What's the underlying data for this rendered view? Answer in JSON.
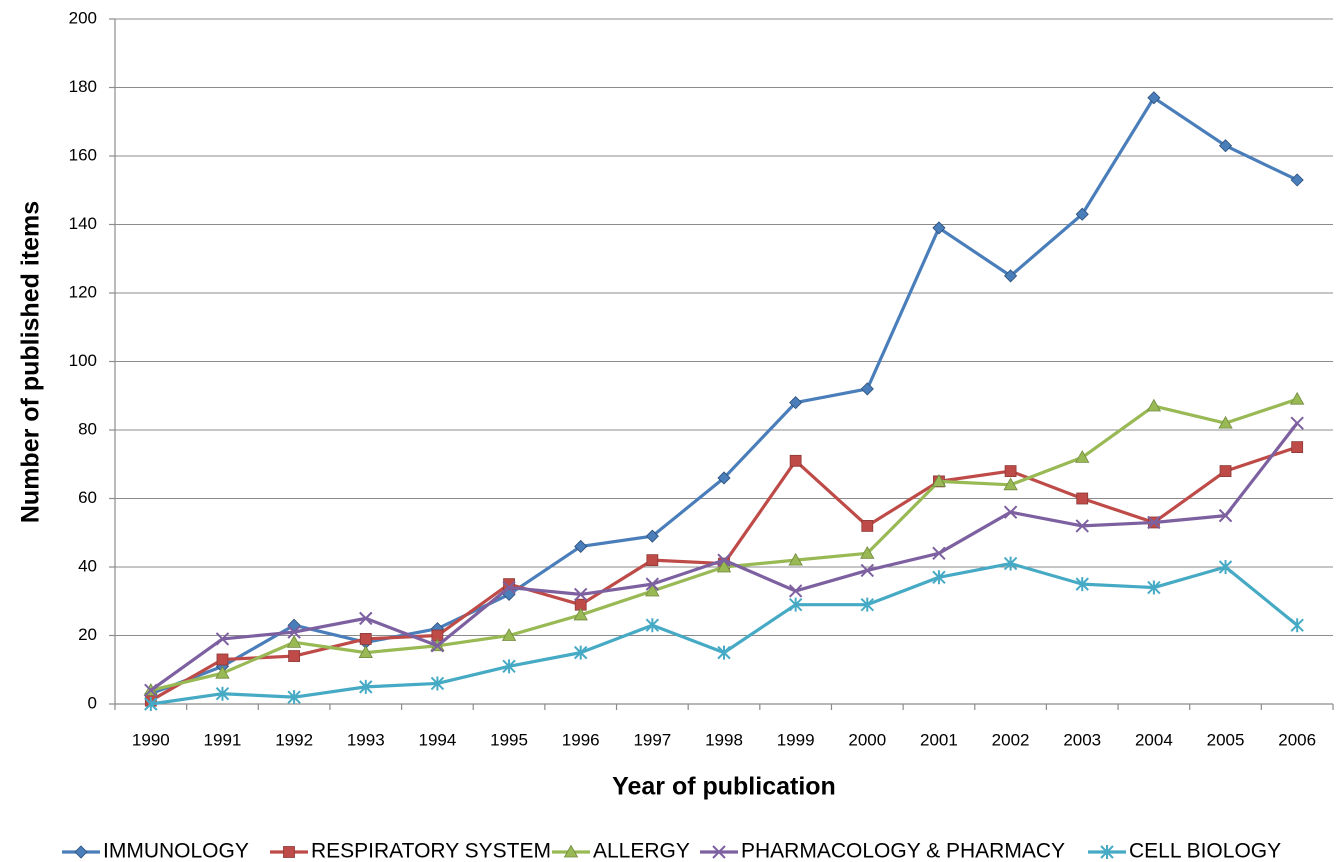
{
  "chart_data": {
    "type": "line",
    "x_label": "Year of publication",
    "y_label": "Number of published items",
    "categories": [
      "1990",
      "1991",
      "1992",
      "1993",
      "1994",
      "1995",
      "1996",
      "1997",
      "1998",
      "1999",
      "2000",
      "2001",
      "2002",
      "2003",
      "2004",
      "2005",
      "2006"
    ],
    "ylim": [
      0,
      200
    ],
    "yticks": [
      0,
      20,
      40,
      60,
      80,
      100,
      120,
      140,
      160,
      180,
      200
    ],
    "grid": true,
    "legend": "bottom",
    "series": [
      {
        "name": "IMMUNOLOGY",
        "color": "#4a7ebb",
        "marker": "diamond",
        "values": [
          3,
          11,
          23,
          18,
          22,
          32,
          46,
          49,
          66,
          88,
          92,
          139,
          125,
          143,
          177,
          163,
          153
        ]
      },
      {
        "name": "RESPIRATORY SYSTEM",
        "color": "#be4b48",
        "marker": "square",
        "values": [
          1,
          13,
          14,
          19,
          20,
          35,
          29,
          42,
          41,
          71,
          52,
          65,
          68,
          60,
          53,
          68,
          75
        ]
      },
      {
        "name": "ALLERGY",
        "color": "#98b954",
        "marker": "triangle",
        "values": [
          4,
          9,
          18,
          15,
          17,
          20,
          26,
          33,
          40,
          42,
          44,
          65,
          64,
          72,
          87,
          82,
          89
        ]
      },
      {
        "name": "PHARMACOLOGY & PHARMACY",
        "color": "#7d60a0",
        "marker": "x",
        "values": [
          4,
          19,
          21,
          25,
          17,
          34,
          32,
          35,
          42,
          33,
          39,
          44,
          56,
          52,
          53,
          55,
          82
        ]
      },
      {
        "name": "CELL BIOLOGY",
        "color": "#46aac5",
        "marker": "star",
        "values": [
          0,
          3,
          2,
          5,
          6,
          11,
          15,
          23,
          15,
          29,
          29,
          37,
          41,
          35,
          34,
          40,
          23
        ]
      }
    ]
  }
}
